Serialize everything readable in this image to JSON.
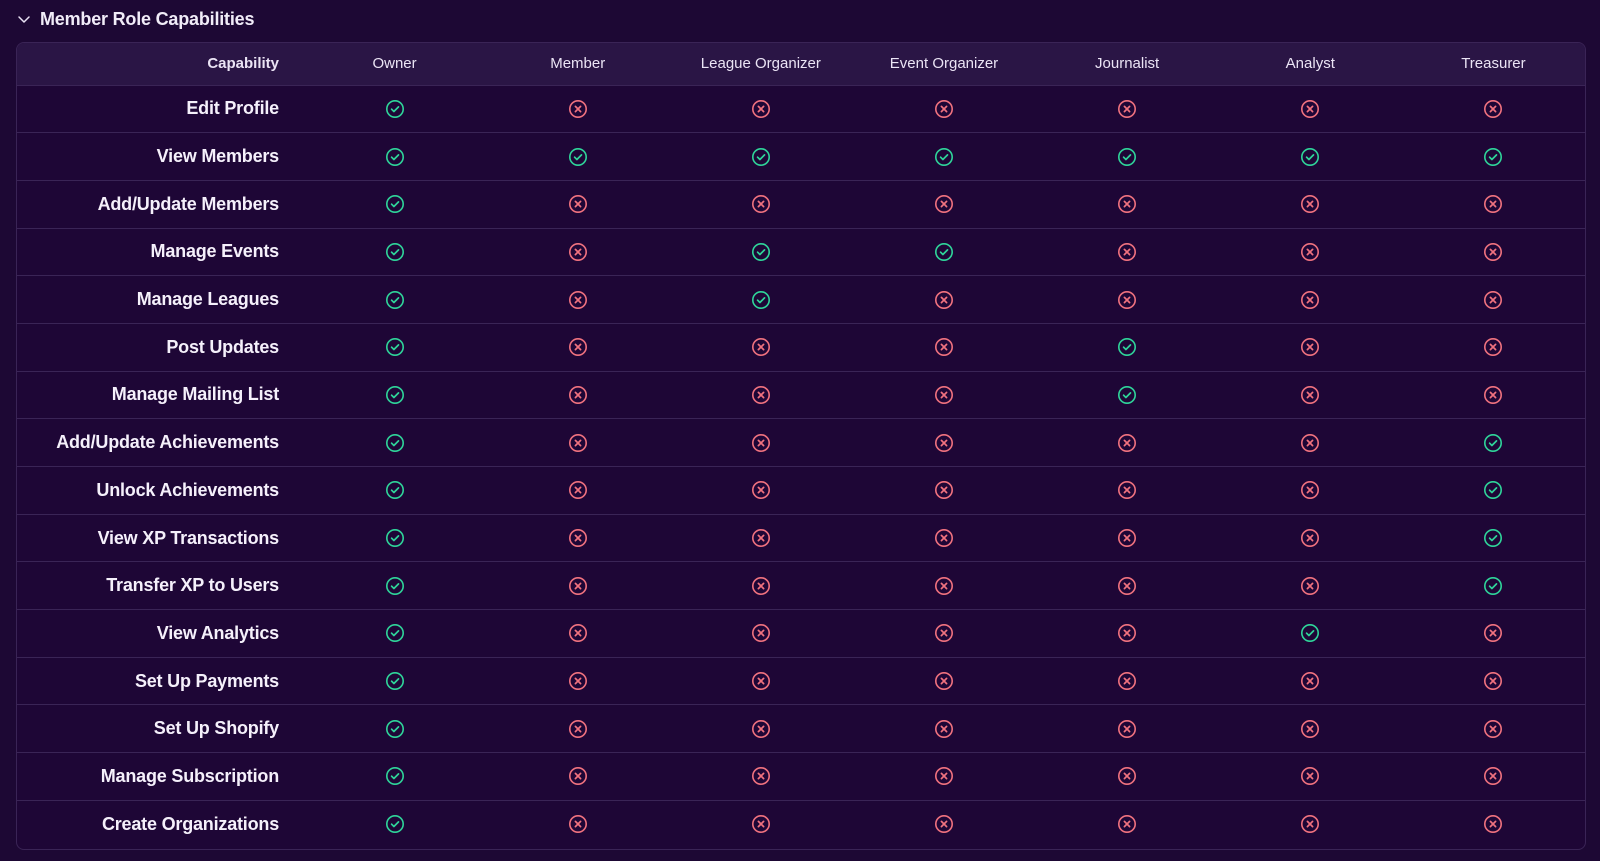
{
  "section": {
    "title": "Member Role Capabilities",
    "expanded": true
  },
  "colors": {
    "yes": "#2fd59a",
    "no": "#f0727f",
    "background": "#1d0834",
    "header_bg": "#2a1545"
  },
  "table": {
    "capability_header": "Capability",
    "roles": [
      "Owner",
      "Member",
      "League Organizer",
      "Event Organizer",
      "Journalist",
      "Analyst",
      "Treasurer"
    ],
    "rows": [
      {
        "capability": "Edit Profile",
        "values": [
          true,
          false,
          false,
          false,
          false,
          false,
          false
        ]
      },
      {
        "capability": "View Members",
        "values": [
          true,
          true,
          true,
          true,
          true,
          true,
          true
        ]
      },
      {
        "capability": "Add/Update Members",
        "values": [
          true,
          false,
          false,
          false,
          false,
          false,
          false
        ]
      },
      {
        "capability": "Manage Events",
        "values": [
          true,
          false,
          true,
          true,
          false,
          false,
          false
        ]
      },
      {
        "capability": "Manage Leagues",
        "values": [
          true,
          false,
          true,
          false,
          false,
          false,
          false
        ]
      },
      {
        "capability": "Post Updates",
        "values": [
          true,
          false,
          false,
          false,
          true,
          false,
          false
        ]
      },
      {
        "capability": "Manage Mailing List",
        "values": [
          true,
          false,
          false,
          false,
          true,
          false,
          false
        ]
      },
      {
        "capability": "Add/Update Achievements",
        "values": [
          true,
          false,
          false,
          false,
          false,
          false,
          true
        ]
      },
      {
        "capability": "Unlock Achievements",
        "values": [
          true,
          false,
          false,
          false,
          false,
          false,
          true
        ]
      },
      {
        "capability": "View XP Transactions",
        "values": [
          true,
          false,
          false,
          false,
          false,
          false,
          true
        ]
      },
      {
        "capability": "Transfer XP to Users",
        "values": [
          true,
          false,
          false,
          false,
          false,
          false,
          true
        ]
      },
      {
        "capability": "View Analytics",
        "values": [
          true,
          false,
          false,
          false,
          false,
          true,
          false
        ]
      },
      {
        "capability": "Set Up Payments",
        "values": [
          true,
          false,
          false,
          false,
          false,
          false,
          false
        ]
      },
      {
        "capability": "Set Up Shopify",
        "values": [
          true,
          false,
          false,
          false,
          false,
          false,
          false
        ]
      },
      {
        "capability": "Manage Subscription",
        "values": [
          true,
          false,
          false,
          false,
          false,
          false,
          false
        ]
      },
      {
        "capability": "Create Organizations",
        "values": [
          true,
          false,
          false,
          false,
          false,
          false,
          false
        ]
      }
    ]
  },
  "icons": {
    "yes": "check-circle-icon",
    "no": "x-circle-icon",
    "toggle": "chevron-down-icon"
  }
}
